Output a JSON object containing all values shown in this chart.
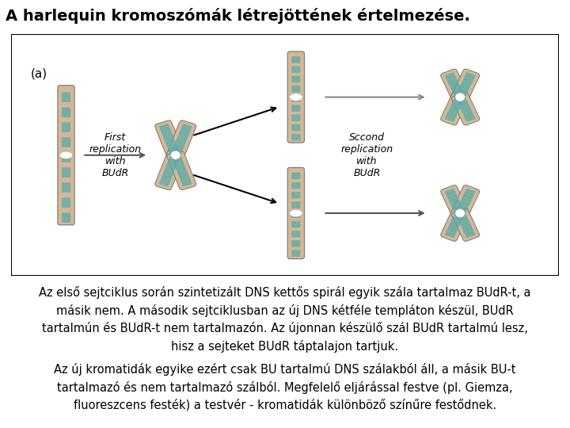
{
  "title": "A harlequin kromoszómák létrejöttének értelmezése.",
  "title_bg": "#ffff00",
  "title_color": "#000000",
  "title_fontsize": 14,
  "fig_bg": "#ffffff",
  "panel_bg": "#ffffff",
  "panel_border": "#000000",
  "label_a": "(a)",
  "first_replication_label": "First\nreplication\nwith\nBUdR",
  "second_replication_label": "Sccond\nreplication\nwith\nBUdR",
  "paragraph1": "Az első sejtciklus során szintetizált DNS kettős spirál egyik szála tartalmaz BUdR-t, a\nmásik nem. A második sejtciklusban az új DNS kétféle templáton készül, BUdR\ntartalmún és BUdR-t nem tartalmazón. Az újonnan készülő szál BUdR tartalmú lesz,\nhisz a sejteket BUdR táptalajon tartjuk.",
  "paragraph2": "Az új kromatidák egyike ezért csak BU tartalmú DNS szálakból áll, a másik BU-t\ntartalmazó és nem tartalmazó szálból. Megfelelő eljárással festve (pl. Giemza,\nfluoreszcens festék) a testvér - kromatidák különböző színűre festődnek.",
  "text_fontsize": 10.5,
  "arrow_color": "#555555",
  "chromo_teal": "#5aabaa",
  "chromo_tan": "#d4b896",
  "white_center": "#ffffff"
}
